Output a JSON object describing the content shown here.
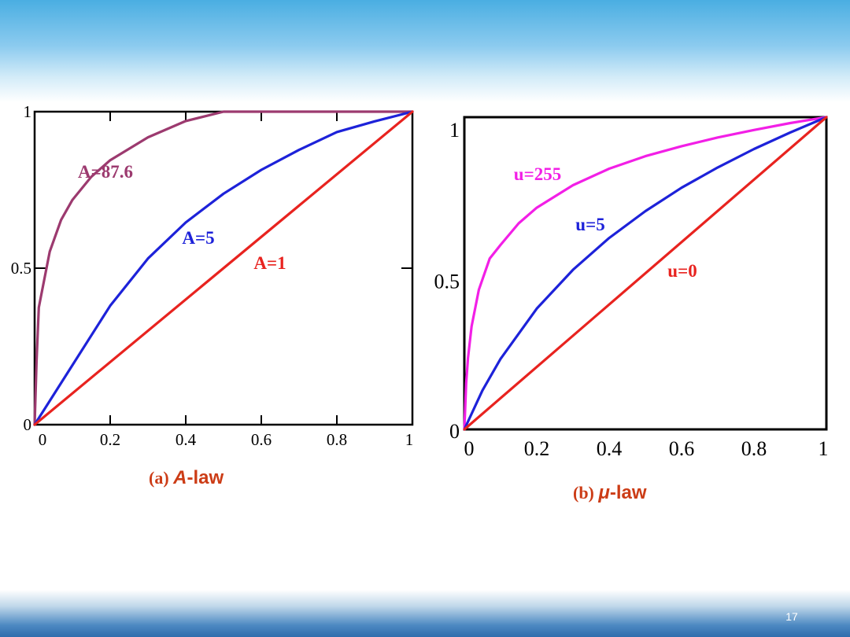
{
  "page_number": "17",
  "colors": {
    "red": "#e8231f",
    "blue": "#1d22d9",
    "mauve": "#9c3a6f",
    "magenta": "#f21fe6",
    "caption": "#cc3c16"
  },
  "chart_data": [
    {
      "type": "line",
      "caption": {
        "prefix": "(a)",
        "symbol": "A",
        "suffix": "-law"
      },
      "xlim": [
        0,
        1
      ],
      "ylim": [
        0,
        1
      ],
      "xticks": [
        "0",
        "0.2",
        "0.4",
        "0.6",
        "0.8",
        "1"
      ],
      "yticks": [
        "0",
        "0.5",
        "1"
      ],
      "grid": false,
      "series": [
        {
          "name": "A=87.6",
          "color": "#9c3a6f",
          "x": [
            0,
            0.005,
            0.011,
            0.02,
            0.04,
            0.07,
            0.1,
            0.15,
            0.2,
            0.3,
            0.4,
            0.5,
            0.6,
            0.7,
            0.8,
            0.9,
            1
          ],
          "y": [
            0,
            0.2,
            0.374,
            0.43,
            0.553,
            0.654,
            0.718,
            0.792,
            0.845,
            0.918,
            0.97,
            1.0,
            1.0,
            1.0,
            1.0,
            1.0,
            1.0
          ]
        },
        {
          "name": "A=5",
          "color": "#1d22d9",
          "x": [
            0,
            0.1,
            0.2,
            0.3,
            0.4,
            0.5,
            0.6,
            0.7,
            0.8,
            0.9,
            1
          ],
          "y": [
            0,
            0.19,
            0.38,
            0.531,
            0.646,
            0.738,
            0.814,
            0.878,
            0.935,
            0.969,
            1.0
          ]
        },
        {
          "name": "A=1",
          "color": "#e8231f",
          "x": [
            0,
            1
          ],
          "y": [
            0,
            1
          ]
        }
      ]
    },
    {
      "type": "line",
      "caption": {
        "prefix": "(b)",
        "symbol": "μ",
        "suffix": "-law"
      },
      "xlim": [
        0,
        1
      ],
      "ylim": [
        0,
        1
      ],
      "xticks": [
        "0",
        "0.2",
        "0.4",
        "0.6",
        "0.8",
        "1"
      ],
      "yticks": [
        "0",
        "0.5",
        "1"
      ],
      "grid": false,
      "series": [
        {
          "name": "u=255",
          "color": "#f21fe6",
          "x": [
            0,
            0.005,
            0.01,
            0.02,
            0.04,
            0.07,
            0.1,
            0.15,
            0.2,
            0.3,
            0.4,
            0.5,
            0.6,
            0.7,
            0.8,
            0.9,
            1
          ],
          "y": [
            0,
            0.148,
            0.228,
            0.33,
            0.447,
            0.547,
            0.591,
            0.66,
            0.71,
            0.782,
            0.835,
            0.875,
            0.907,
            0.935,
            0.959,
            0.981,
            1.0
          ]
        },
        {
          "name": "u=5",
          "color": "#1d22d9",
          "x": [
            0,
            0.05,
            0.1,
            0.2,
            0.3,
            0.4,
            0.5,
            0.6,
            0.7,
            0.8,
            0.9,
            1
          ],
          "y": [
            0,
            0.125,
            0.226,
            0.387,
            0.511,
            0.613,
            0.699,
            0.774,
            0.839,
            0.898,
            0.951,
            1.0
          ]
        },
        {
          "name": "u=0",
          "color": "#e8231f",
          "x": [
            0,
            1
          ],
          "y": [
            0,
            1
          ]
        }
      ]
    }
  ]
}
